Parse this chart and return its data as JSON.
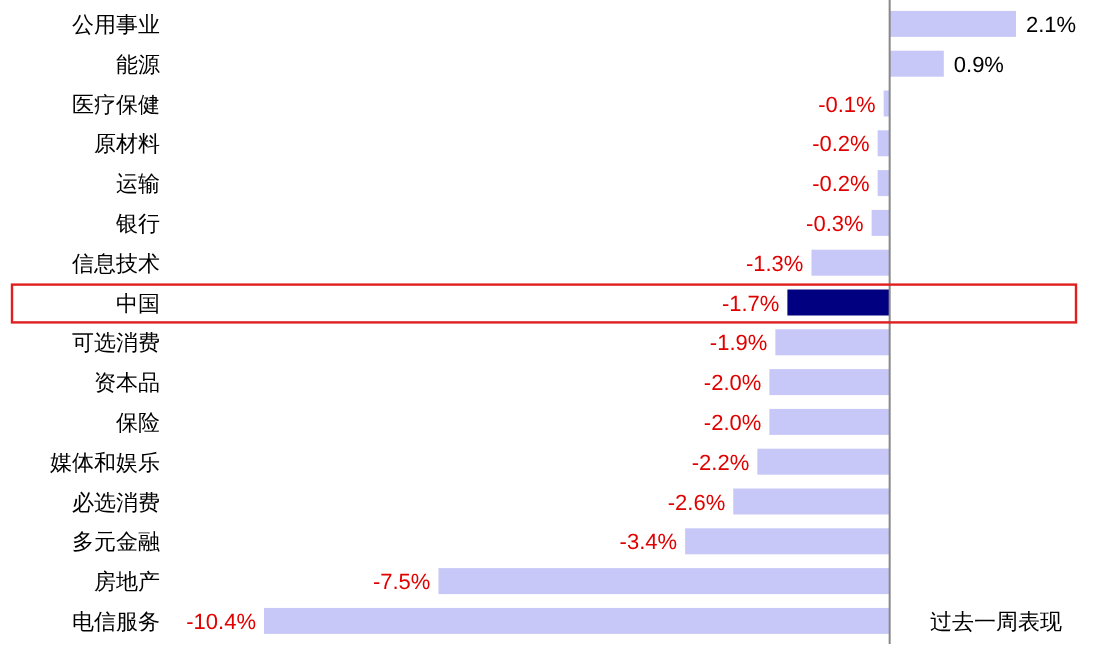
{
  "chart_data": {
    "type": "bar",
    "orientation": "horizontal",
    "categories": [
      "公用事业",
      "能源",
      "医疗保健",
      "原材料",
      "运输",
      "银行",
      "信息技术",
      "中国",
      "可选消费",
      "资本品",
      "保险",
      "媒体和娱乐",
      "必选消费",
      "多元金融",
      "房地产",
      "电信服务"
    ],
    "values": [
      2.1,
      0.9,
      -0.1,
      -0.2,
      -0.2,
      -0.3,
      -1.3,
      -1.7,
      -1.9,
      -2.0,
      -2.0,
      -2.2,
      -2.6,
      -3.4,
      -7.5,
      -10.4
    ],
    "colors": [
      "#c8c8f8",
      "#c8c8f8",
      "#c8c8f8",
      "#c8c8f8",
      "#c8c8f8",
      "#c8c8f8",
      "#c8c8f8",
      "#000080",
      "#c8c8f8",
      "#c8c8f8",
      "#c8c8f8",
      "#c8c8f8",
      "#c8c8f8",
      "#c8c8f8",
      "#c8c8f8",
      "#c8c8f8"
    ],
    "value_labels": [
      "2.1%",
      "0.9%",
      "-0.1%",
      "-0.2%",
      "-0.2%",
      "-0.3%",
      "-1.3%",
      "-1.7%",
      "-1.9%",
      "-2.0%",
      "-2.0%",
      "-2.2%",
      "-2.6%",
      "-3.4%",
      "-7.5%",
      "-10.4%"
    ],
    "annotations": [
      "过去一周表现"
    ]
  }
}
